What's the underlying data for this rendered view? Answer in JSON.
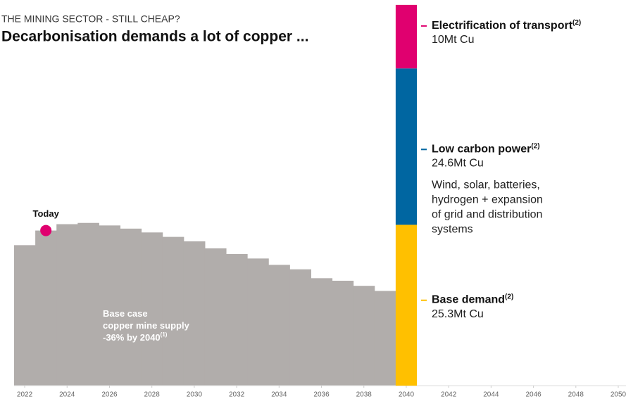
{
  "chart_data": {
    "type": "step",
    "kicker": "THE MINING SECTOR - STILL CHEAP?",
    "title": "Decarbonisation demands a lot of copper ...",
    "x": [
      2022,
      2023,
      2024,
      2025,
      2026,
      2027,
      2028,
      2029,
      2030,
      2031,
      2032,
      2033,
      2034,
      2035,
      2036,
      2037,
      2038,
      2039
    ],
    "values": [
      22.1,
      24.4,
      25.4,
      25.6,
      25.2,
      24.7,
      24.1,
      23.4,
      22.7,
      21.6,
      20.7,
      20.0,
      19.0,
      18.3,
      16.9,
      16.5,
      15.7,
      14.9
    ],
    "color": "#b1adab",
    "xlim": [
      2021.5,
      2050
    ],
    "xticks": [
      2022,
      2024,
      2026,
      2028,
      2030,
      2032,
      2034,
      2036,
      2038,
      2040,
      2042,
      2044,
      2046,
      2048,
      2050
    ],
    "ylim": [
      0,
      60
    ],
    "today": {
      "label": "Today",
      "x": 2023,
      "value": 24.4,
      "color": "#e0006f"
    },
    "supply_note": {
      "lines": [
        "Base case",
        "copper mine supply",
        "-36% by 2040"
      ],
      "footnote": "(1)"
    },
    "demand": {
      "x": 2040,
      "series": [
        {
          "name": "Base demand",
          "footnote": "(2)",
          "color": "#ffc000",
          "values": [
            25.3
          ],
          "value_labels": [
            "25.3Mt Cu"
          ],
          "description": []
        },
        {
          "name": "Low carbon power",
          "footnote": "(2)",
          "color": "#0066a1",
          "values": [
            24.6
          ],
          "value_labels": [
            "24.6Mt Cu"
          ],
          "description": [
            "Wind, solar, batteries,",
            "hydrogen + expansion",
            "of grid and distribution",
            "systems"
          ]
        },
        {
          "name": "Electrification of transport",
          "footnote": "(2)",
          "color": "#e0006f",
          "values": [
            10
          ],
          "value_labels": [
            "10Mt Cu"
          ],
          "description": []
        }
      ]
    }
  }
}
